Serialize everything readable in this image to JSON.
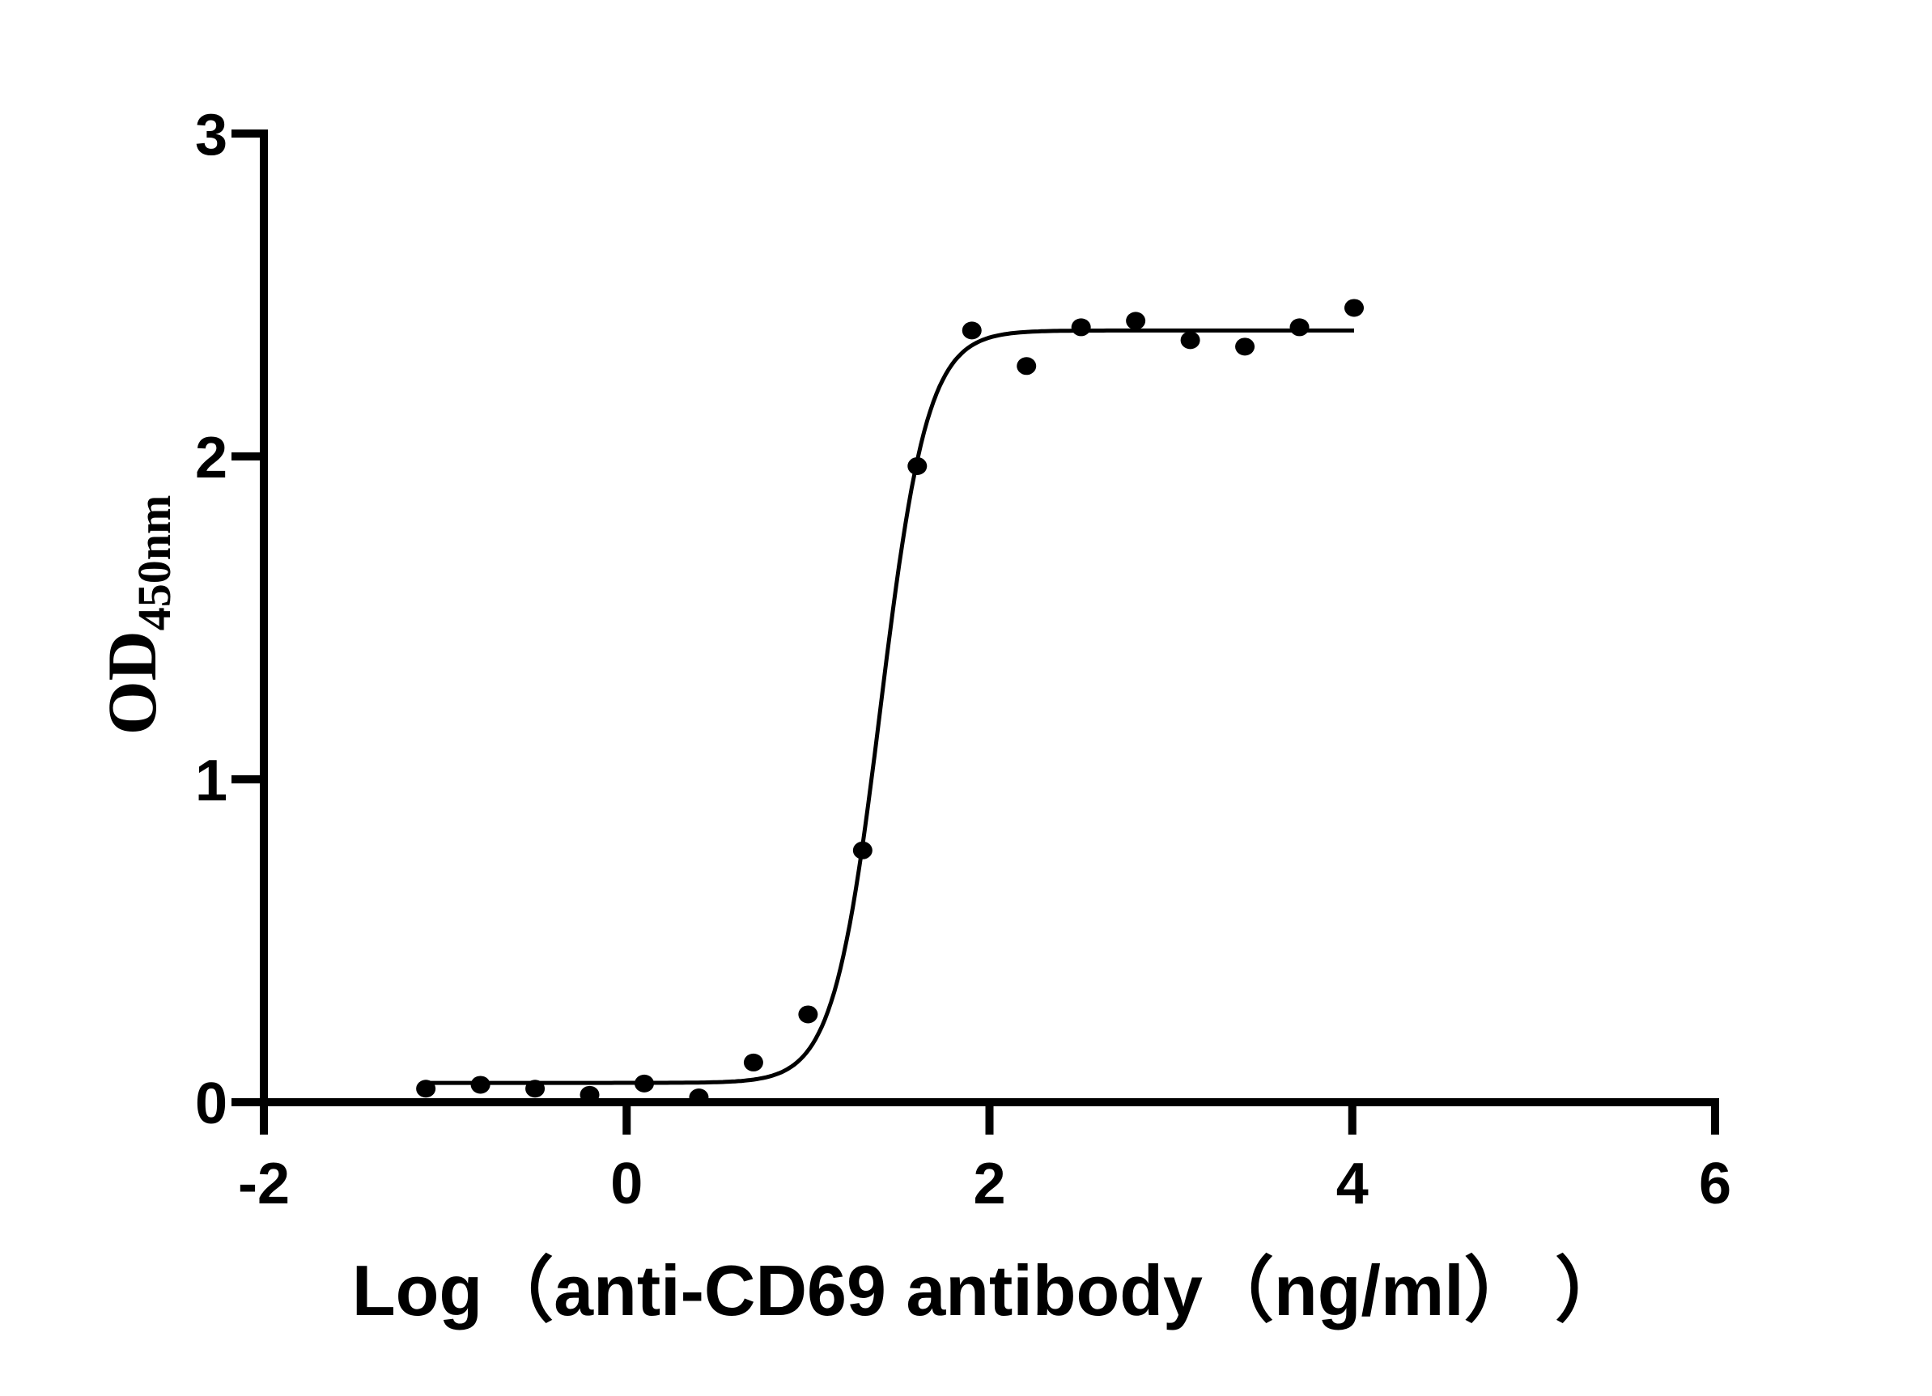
{
  "chart_data": {
    "type": "scatter",
    "title": "",
    "xlabel": "Log（anti-CD69 antibody（ng/ml）  ）",
    "ylabel": "OD",
    "ylabel_subscript": "450nm",
    "xlim": [
      -2,
      6
    ],
    "ylim": [
      0,
      3
    ],
    "xticks": [
      -2,
      0,
      2,
      4,
      6
    ],
    "xtick_labels": [
      "-2",
      "0",
      "2",
      "4",
      "6"
    ],
    "yticks": [
      0,
      1,
      2,
      3
    ],
    "ytick_labels": [
      "0",
      "1",
      "2",
      "3"
    ],
    "grid": false,
    "legend": "none",
    "color": "#000000",
    "series": [
      {
        "x": [
          -1.107,
          -0.806,
          -0.505,
          -0.204,
          0.097,
          0.398,
          0.699,
          1.0,
          1.301,
          1.602,
          1.903,
          2.204,
          2.505,
          2.806,
          3.107,
          3.408,
          3.709,
          4.01
        ],
        "y": [
          0.042,
          0.054,
          0.042,
          0.023,
          0.058,
          0.015,
          0.123,
          0.272,
          0.78,
          1.97,
          2.39,
          2.28,
          2.4,
          2.42,
          2.36,
          2.34,
          2.4,
          2.46
        ]
      }
    ],
    "fit_curve": {
      "model": "four-parameter logistic",
      "bottom": 0.06,
      "top": 2.39,
      "logEC50": 1.4,
      "hill_slope": 3.37,
      "x_range": [
        -1.107,
        4.01
      ]
    }
  }
}
